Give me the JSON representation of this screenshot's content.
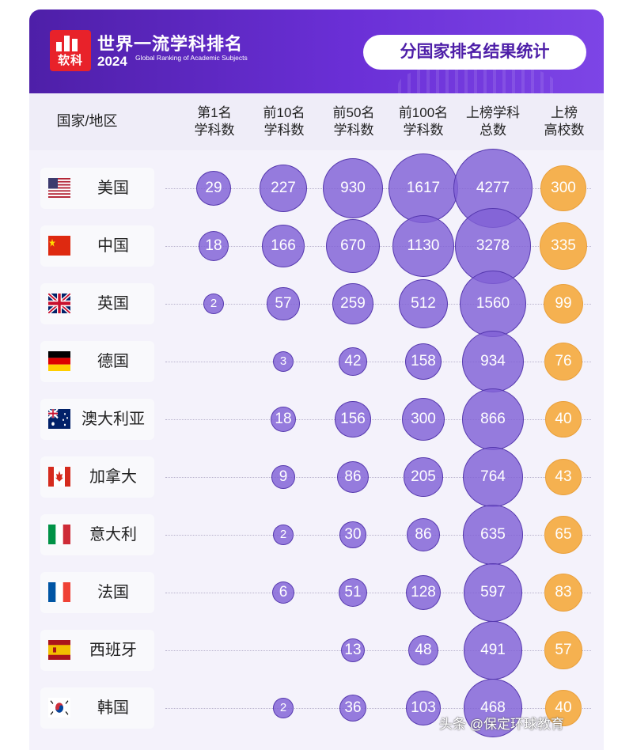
{
  "header": {
    "logo_text": "软科",
    "title_cn": "世界一流学科排名",
    "year": "2024",
    "title_en": "Global Ranking of Academic Subjects",
    "badge": "分国家排名结果统计"
  },
  "columns": {
    "country": "国家/地区",
    "top1": [
      "第1名",
      "学科数"
    ],
    "top10": [
      "前10名",
      "学科数"
    ],
    "top50": [
      "前50名",
      "学科数"
    ],
    "top100": [
      "前100名",
      "学科数"
    ],
    "total": [
      "上榜学科",
      "总数"
    ],
    "univ": [
      "上榜",
      "高校数"
    ]
  },
  "colors": {
    "banner": "#5a24c0",
    "bubble_purple": "#8060d6",
    "bubble_orange": "#f5b150"
  },
  "chart_data": {
    "type": "table",
    "categories": [
      "美国",
      "中国",
      "英国",
      "德国",
      "澳大利亚",
      "加拿大",
      "意大利",
      "法国",
      "西班牙",
      "韩国"
    ],
    "flags": [
      "flag-us-icon",
      "flag-cn-icon",
      "flag-gb-icon",
      "flag-de-icon",
      "flag-au-icon",
      "flag-ca-icon",
      "flag-it-icon",
      "flag-fr-icon",
      "flag-es-icon",
      "flag-kr-icon"
    ],
    "series": [
      {
        "name": "第1名学科数",
        "values": [
          29,
          18,
          2,
          null,
          null,
          null,
          null,
          null,
          null,
          null
        ]
      },
      {
        "name": "前10名学科数",
        "values": [
          227,
          166,
          57,
          3,
          18,
          9,
          2,
          6,
          null,
          2
        ]
      },
      {
        "name": "前50名学科数",
        "values": [
          930,
          670,
          259,
          42,
          156,
          86,
          30,
          51,
          13,
          36
        ]
      },
      {
        "name": "前100名学科数",
        "values": [
          1617,
          1130,
          512,
          158,
          300,
          205,
          86,
          128,
          48,
          103
        ]
      },
      {
        "name": "上榜学科总数",
        "values": [
          4277,
          3278,
          1560,
          934,
          866,
          764,
          635,
          597,
          491,
          468
        ]
      },
      {
        "name": "上榜高校数",
        "values": [
          300,
          335,
          99,
          76,
          40,
          43,
          65,
          83,
          57,
          40
        ]
      }
    ]
  },
  "watermark": "头条 @保定环球教育"
}
